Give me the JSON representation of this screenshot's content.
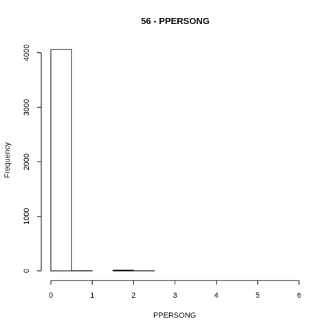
{
  "chart_data": {
    "type": "bar",
    "title": "56 - PPERSONG",
    "xlabel": "PPERSONG",
    "ylabel": "Frequency",
    "bins": [
      {
        "x0": 0.0,
        "x1": 0.5,
        "count": 4060
      },
      {
        "x0": 0.5,
        "x1": 1.0,
        "count": 2
      },
      {
        "x0": 1.0,
        "x1": 1.5,
        "count": 0
      },
      {
        "x0": 1.5,
        "x1": 2.0,
        "count": 12
      },
      {
        "x0": 2.0,
        "x1": 2.5,
        "count": 1
      },
      {
        "x0": 2.5,
        "x1": 3.0,
        "count": 0
      },
      {
        "x0": 3.0,
        "x1": 3.5,
        "count": 0
      },
      {
        "x0": 3.5,
        "x1": 4.0,
        "count": 0
      },
      {
        "x0": 4.0,
        "x1": 4.5,
        "count": 0
      },
      {
        "x0": 4.5,
        "x1": 5.0,
        "count": 0
      },
      {
        "x0": 5.0,
        "x1": 5.5,
        "count": 0
      },
      {
        "x0": 5.5,
        "x1": 6.0,
        "count": 0
      }
    ],
    "xlim": [
      0,
      6
    ],
    "ylim": [
      0,
      4060
    ],
    "xticks": [
      0,
      1,
      2,
      3,
      4,
      5,
      6
    ],
    "yticks": [
      0,
      1000,
      2000,
      3000,
      4000
    ],
    "grid": false
  }
}
